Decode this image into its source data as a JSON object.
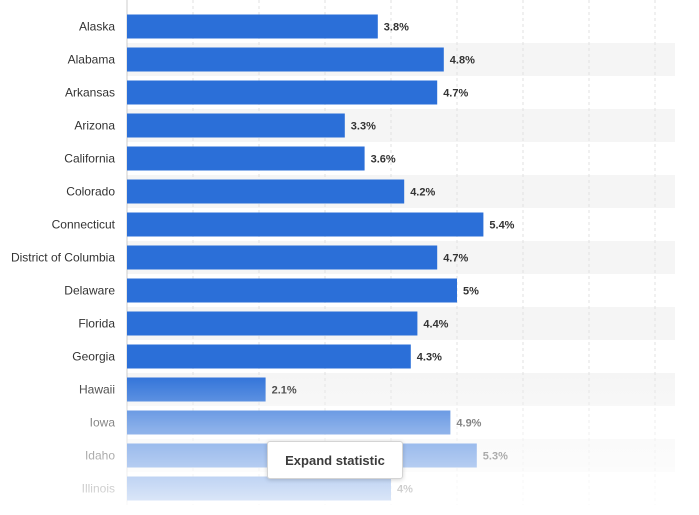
{
  "chart_data": {
    "type": "bar",
    "orientation": "horizontal",
    "categories": [
      "Alaska",
      "Alabama",
      "Arkansas",
      "Arizona",
      "California",
      "Colorado",
      "Connecticut",
      "District of Columbia",
      "Delaware",
      "Florida",
      "Georgia",
      "Hawaii",
      "Iowa",
      "Idaho",
      "Illinois"
    ],
    "values": [
      3.8,
      4.8,
      4.7,
      3.3,
      3.6,
      4.2,
      5.4,
      4.7,
      5,
      4.4,
      4.3,
      2.1,
      4.9,
      5.3,
      4
    ],
    "value_labels": [
      "3.8%",
      "4.8%",
      "4.7%",
      "3.3%",
      "3.6%",
      "4.2%",
      "5.4%",
      "4.7%",
      "5%",
      "4.4%",
      "4.3%",
      "2.1%",
      "4.9%",
      "5.3%",
      "4%"
    ],
    "title": "",
    "xlabel": "",
    "ylabel": "",
    "xlim": [
      0,
      8
    ],
    "grid": true,
    "bar_color": "#2b6fd8",
    "label_color": "#333333"
  },
  "overlay": {
    "expand_label": "Expand statistic"
  }
}
